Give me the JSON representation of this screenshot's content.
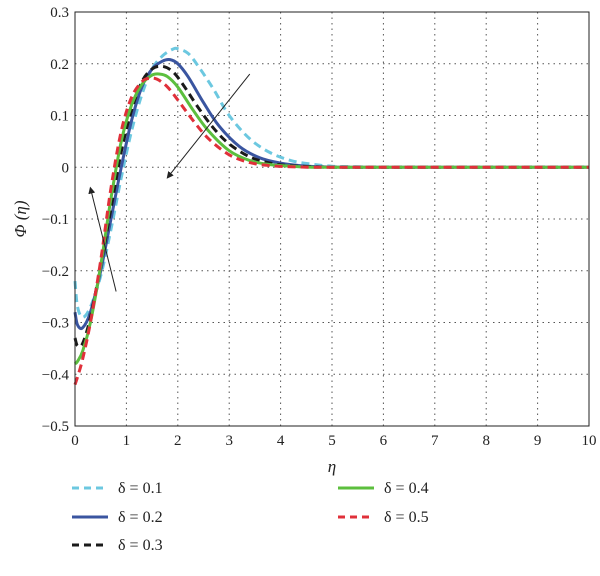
{
  "chart_data": {
    "type": "line",
    "title": "",
    "xlabel": "η",
    "ylabel": "Φ (η)",
    "xlim": [
      0,
      10
    ],
    "ylim": [
      -0.5,
      0.3
    ],
    "xticks": [
      "0",
      "1",
      "2",
      "3",
      "4",
      "5",
      "6",
      "7",
      "8",
      "9",
      "10"
    ],
    "yticks": [
      "0.3",
      "0.2",
      "0.1",
      "0",
      "−0.1",
      "−0.2",
      "−0.3",
      "−0.4",
      "−0.5"
    ],
    "grid": true,
    "legend_position": "bottom",
    "series": [
      {
        "name": "δ = 0.1",
        "color": "#6cc8e0",
        "dash": "dashed",
        "x": [
          0,
          0.05,
          0.15,
          0.3,
          0.5,
          0.7,
          0.9,
          1.1,
          1.3,
          1.5,
          1.7,
          1.9,
          2.0,
          2.2,
          2.4,
          2.7,
          3.0,
          3.4,
          3.8,
          4.2,
          4.6,
          5.0,
          5.5,
          6.0,
          7.0,
          8.0,
          9.0,
          10.0
        ],
        "y": [
          -0.22,
          -0.27,
          -0.29,
          -0.27,
          -0.21,
          -0.12,
          -0.02,
          0.07,
          0.14,
          0.19,
          0.215,
          0.228,
          0.229,
          0.22,
          0.195,
          0.15,
          0.1,
          0.055,
          0.028,
          0.013,
          0.006,
          0.002,
          0.001,
          0,
          0,
          0,
          0,
          0
        ]
      },
      {
        "name": "δ = 0.2",
        "color": "#3a55a0",
        "dash": "solid",
        "x": [
          0,
          0.05,
          0.15,
          0.3,
          0.5,
          0.7,
          0.9,
          1.1,
          1.3,
          1.5,
          1.7,
          1.85,
          2.0,
          2.2,
          2.5,
          2.8,
          3.2,
          3.6,
          4.0,
          4.4,
          4.8,
          5.2,
          6.0,
          7.0,
          8.0,
          9.0,
          10.0
        ],
        "y": [
          -0.28,
          -0.305,
          -0.31,
          -0.28,
          -0.2,
          -0.1,
          0.0,
          0.09,
          0.155,
          0.19,
          0.205,
          0.208,
          0.2,
          0.175,
          0.125,
          0.08,
          0.04,
          0.018,
          0.008,
          0.003,
          0.001,
          0,
          0,
          0,
          0,
          0,
          0
        ]
      },
      {
        "name": "δ = 0.3",
        "color": "#1a1a1a",
        "dash": "dashed",
        "x": [
          0,
          0.05,
          0.15,
          0.3,
          0.5,
          0.7,
          0.9,
          1.1,
          1.3,
          1.5,
          1.7,
          1.9,
          2.1,
          2.4,
          2.7,
          3.0,
          3.4,
          3.8,
          4.2,
          4.6,
          5.0,
          6.0,
          7.0,
          8.0,
          9.0,
          10.0
        ],
        "y": [
          -0.33,
          -0.345,
          -0.34,
          -0.29,
          -0.19,
          -0.08,
          0.03,
          0.11,
          0.165,
          0.19,
          0.195,
          0.185,
          0.16,
          0.115,
          0.075,
          0.045,
          0.02,
          0.008,
          0.003,
          0.001,
          0,
          0,
          0,
          0,
          0,
          0
        ]
      },
      {
        "name": "δ = 0.4",
        "color": "#5cbf3e",
        "dash": "solid",
        "x": [
          0,
          0.05,
          0.15,
          0.3,
          0.5,
          0.7,
          0.9,
          1.1,
          1.3,
          1.5,
          1.65,
          1.8,
          2.0,
          2.3,
          2.6,
          3.0,
          3.4,
          3.8,
          4.2,
          4.6,
          5.0,
          6.0,
          7.0,
          8.0,
          9.0,
          10.0
        ],
        "y": [
          -0.38,
          -0.375,
          -0.355,
          -0.3,
          -0.19,
          -0.06,
          0.05,
          0.12,
          0.16,
          0.178,
          0.18,
          0.175,
          0.155,
          0.11,
          0.07,
          0.032,
          0.013,
          0.005,
          0.002,
          0,
          0,
          0,
          0,
          0,
          0,
          0
        ]
      },
      {
        "name": "δ = 0.5",
        "color": "#e0303a",
        "dash": "dashed",
        "x": [
          0,
          0.05,
          0.15,
          0.3,
          0.5,
          0.7,
          0.9,
          1.1,
          1.3,
          1.45,
          1.6,
          1.8,
          2.0,
          2.3,
          2.6,
          3.0,
          3.4,
          3.8,
          4.2,
          4.6,
          5.0,
          6.0,
          7.0,
          8.0,
          9.0,
          10.0
        ],
        "y": [
          -0.42,
          -0.405,
          -0.37,
          -0.3,
          -0.18,
          -0.04,
          0.07,
          0.135,
          0.165,
          0.172,
          0.17,
          0.155,
          0.13,
          0.09,
          0.055,
          0.024,
          0.009,
          0.003,
          0.001,
          0,
          0,
          0,
          0,
          0,
          0,
          0
        ]
      }
    ],
    "annotations": [
      {
        "type": "arrow",
        "from": [
          3.4,
          0.18
        ],
        "to": [
          1.8,
          -0.02
        ]
      },
      {
        "type": "arrow",
        "from": [
          0.8,
          -0.24
        ],
        "to": [
          0.3,
          -0.04
        ]
      }
    ]
  }
}
